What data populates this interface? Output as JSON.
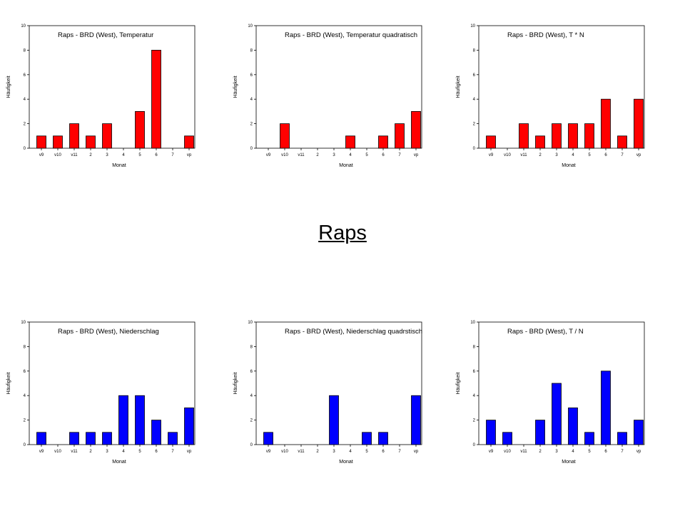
{
  "page_title": "Raps",
  "colors": {
    "top_row": "#ff0000",
    "bottom_row": "#0000ff",
    "axis": "#000000"
  },
  "chart_data": [
    {
      "type": "bar",
      "title": "Raps - BRD (West), Temperatur",
      "categories": [
        "v9",
        "v10",
        "v11",
        "2",
        "3",
        "4",
        "5",
        "6",
        "7",
        "vp"
      ],
      "values": [
        1,
        1,
        2,
        1,
        2,
        0,
        3,
        8,
        0,
        1
      ],
      "xlabel": "Monat",
      "ylabel": "Häufigkeit",
      "ylim": [
        0,
        10
      ],
      "yticks": [
        "0",
        "2",
        "4",
        "6",
        "8",
        "10"
      ],
      "color": "#ff0000"
    },
    {
      "type": "bar",
      "title": "Raps - BRD (West), Temperatur quadratisch",
      "categories": [
        "v9",
        "v10",
        "v11",
        "2",
        "3",
        "4",
        "5",
        "6",
        "7",
        "vp"
      ],
      "values": [
        0,
        2,
        0,
        0,
        0,
        1,
        0,
        1,
        2,
        3
      ],
      "xlabel": "Monat",
      "ylabel": "Häufigkeit",
      "ylim": [
        0,
        10
      ],
      "yticks": [
        "0",
        "2",
        "4",
        "6",
        "8",
        "10"
      ],
      "color": "#ff0000"
    },
    {
      "type": "bar",
      "title": "Raps - BRD (West), T * N",
      "categories": [
        "v9",
        "v10",
        "v11",
        "2",
        "3",
        "4",
        "5",
        "6",
        "7",
        "vp"
      ],
      "values": [
        1,
        0,
        2,
        1,
        2,
        2,
        2,
        4,
        1,
        4
      ],
      "xlabel": "Monat",
      "ylabel": "Häufigkeit",
      "ylim": [
        0,
        10
      ],
      "yticks": [
        "0",
        "2",
        "4",
        "6",
        "8",
        "10"
      ],
      "color": "#ff0000"
    },
    {
      "type": "bar",
      "title": "Raps - BRD (West), Niederschlag",
      "categories": [
        "v9",
        "v10",
        "v11",
        "2",
        "3",
        "4",
        "5",
        "6",
        "7",
        "vp"
      ],
      "values": [
        1,
        0,
        1,
        1,
        1,
        4,
        4,
        2,
        1,
        3
      ],
      "xlabel": "Monat",
      "ylabel": "Häufigkeit",
      "ylim": [
        0,
        10
      ],
      "yticks": [
        "0",
        "2",
        "4",
        "6",
        "8",
        "10"
      ],
      "color": "#0000ff"
    },
    {
      "type": "bar",
      "title": "Raps - BRD (West), Niederschlag quadrstisch",
      "categories": [
        "v9",
        "v10",
        "v11",
        "2",
        "3",
        "4",
        "5",
        "6",
        "7",
        "vp"
      ],
      "values": [
        1,
        0,
        0,
        0,
        4,
        0,
        1,
        1,
        0,
        4
      ],
      "xlabel": "Monat",
      "ylabel": "Häufigkeit",
      "ylim": [
        0,
        10
      ],
      "yticks": [
        "0",
        "2",
        "4",
        "6",
        "8",
        "10"
      ],
      "color": "#0000ff"
    },
    {
      "type": "bar",
      "title": "Raps - BRD (West), T / N",
      "categories": [
        "v9",
        "v10",
        "v11",
        "2",
        "3",
        "4",
        "5",
        "6",
        "7",
        "vp"
      ],
      "values": [
        2,
        1,
        0,
        2,
        5,
        3,
        1,
        6,
        1,
        2
      ],
      "xlabel": "Monat",
      "ylabel": "Häufigkeit",
      "ylim": [
        0,
        10
      ],
      "yticks": [
        "0",
        "2",
        "4",
        "6",
        "8",
        "10"
      ],
      "color": "#0000ff"
    }
  ]
}
